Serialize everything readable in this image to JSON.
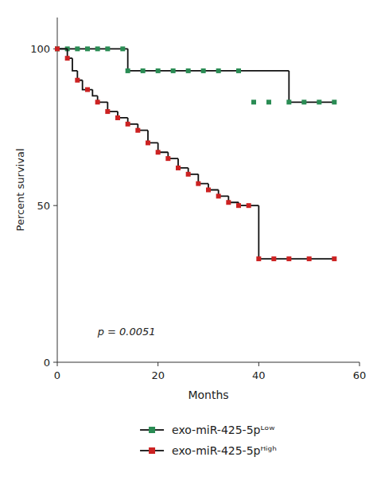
{
  "chart_data": {
    "type": "step",
    "xlabel": "Months",
    "ylabel": "Percent survival",
    "xlim": [
      0,
      60
    ],
    "ylim": [
      0,
      110
    ],
    "xticks": [
      0,
      20,
      40,
      60
    ],
    "yticks": [
      0,
      50,
      100
    ],
    "grid": false,
    "legend": "bottom",
    "annotations": [
      {
        "text": "p = 0.0051",
        "x": 8,
        "y": 8
      }
    ],
    "series": [
      {
        "type": "step",
        "color": "#111111",
        "x": [
          0,
          13,
          14,
          36,
          46,
          55
        ],
        "values": [
          100,
          100,
          93,
          93,
          83,
          83
        ]
      },
      {
        "type": "scatter",
        "marker": "square",
        "color": "#2a8c54",
        "name": "exo-miR-425-5pᴸᵒʷ",
        "x": [
          0,
          2,
          4,
          6,
          8,
          10,
          13,
          14,
          17,
          20,
          23,
          26,
          29,
          32,
          36,
          39,
          42,
          46,
          49,
          52,
          55
        ],
        "values": [
          100,
          100,
          100,
          100,
          100,
          100,
          100,
          93,
          93,
          93,
          93,
          93,
          93,
          93,
          93,
          83,
          83,
          83,
          83,
          83,
          83
        ]
      },
      {
        "type": "step",
        "color": "#111111",
        "x": [
          0,
          2,
          3,
          4,
          5,
          7,
          8,
          10,
          12,
          14,
          16,
          18,
          20,
          22,
          24,
          26,
          28,
          30,
          32,
          34,
          36,
          38,
          40,
          43,
          55
        ],
        "values": [
          100,
          97,
          93,
          90,
          87,
          85,
          83,
          80,
          78,
          76,
          74,
          70,
          67,
          65,
          62,
          60,
          57,
          55,
          53,
          51,
          50,
          50,
          33,
          33,
          33
        ]
      },
      {
        "type": "scatter",
        "marker": "square",
        "color": "#cc2222",
        "name": "exo-miR-425-5pᴴⁱᵍʰ",
        "x": [
          0,
          2,
          4,
          6,
          8,
          10,
          12,
          14,
          16,
          18,
          20,
          22,
          24,
          26,
          28,
          30,
          32,
          34,
          36,
          38,
          40,
          43,
          46,
          50,
          55
        ],
        "values": [
          100,
          97,
          90,
          87,
          83,
          80,
          78,
          76,
          74,
          70,
          67,
          65,
          62,
          60,
          57,
          55,
          53,
          51,
          50,
          50,
          33,
          33,
          33,
          33,
          33
        ]
      }
    ]
  }
}
